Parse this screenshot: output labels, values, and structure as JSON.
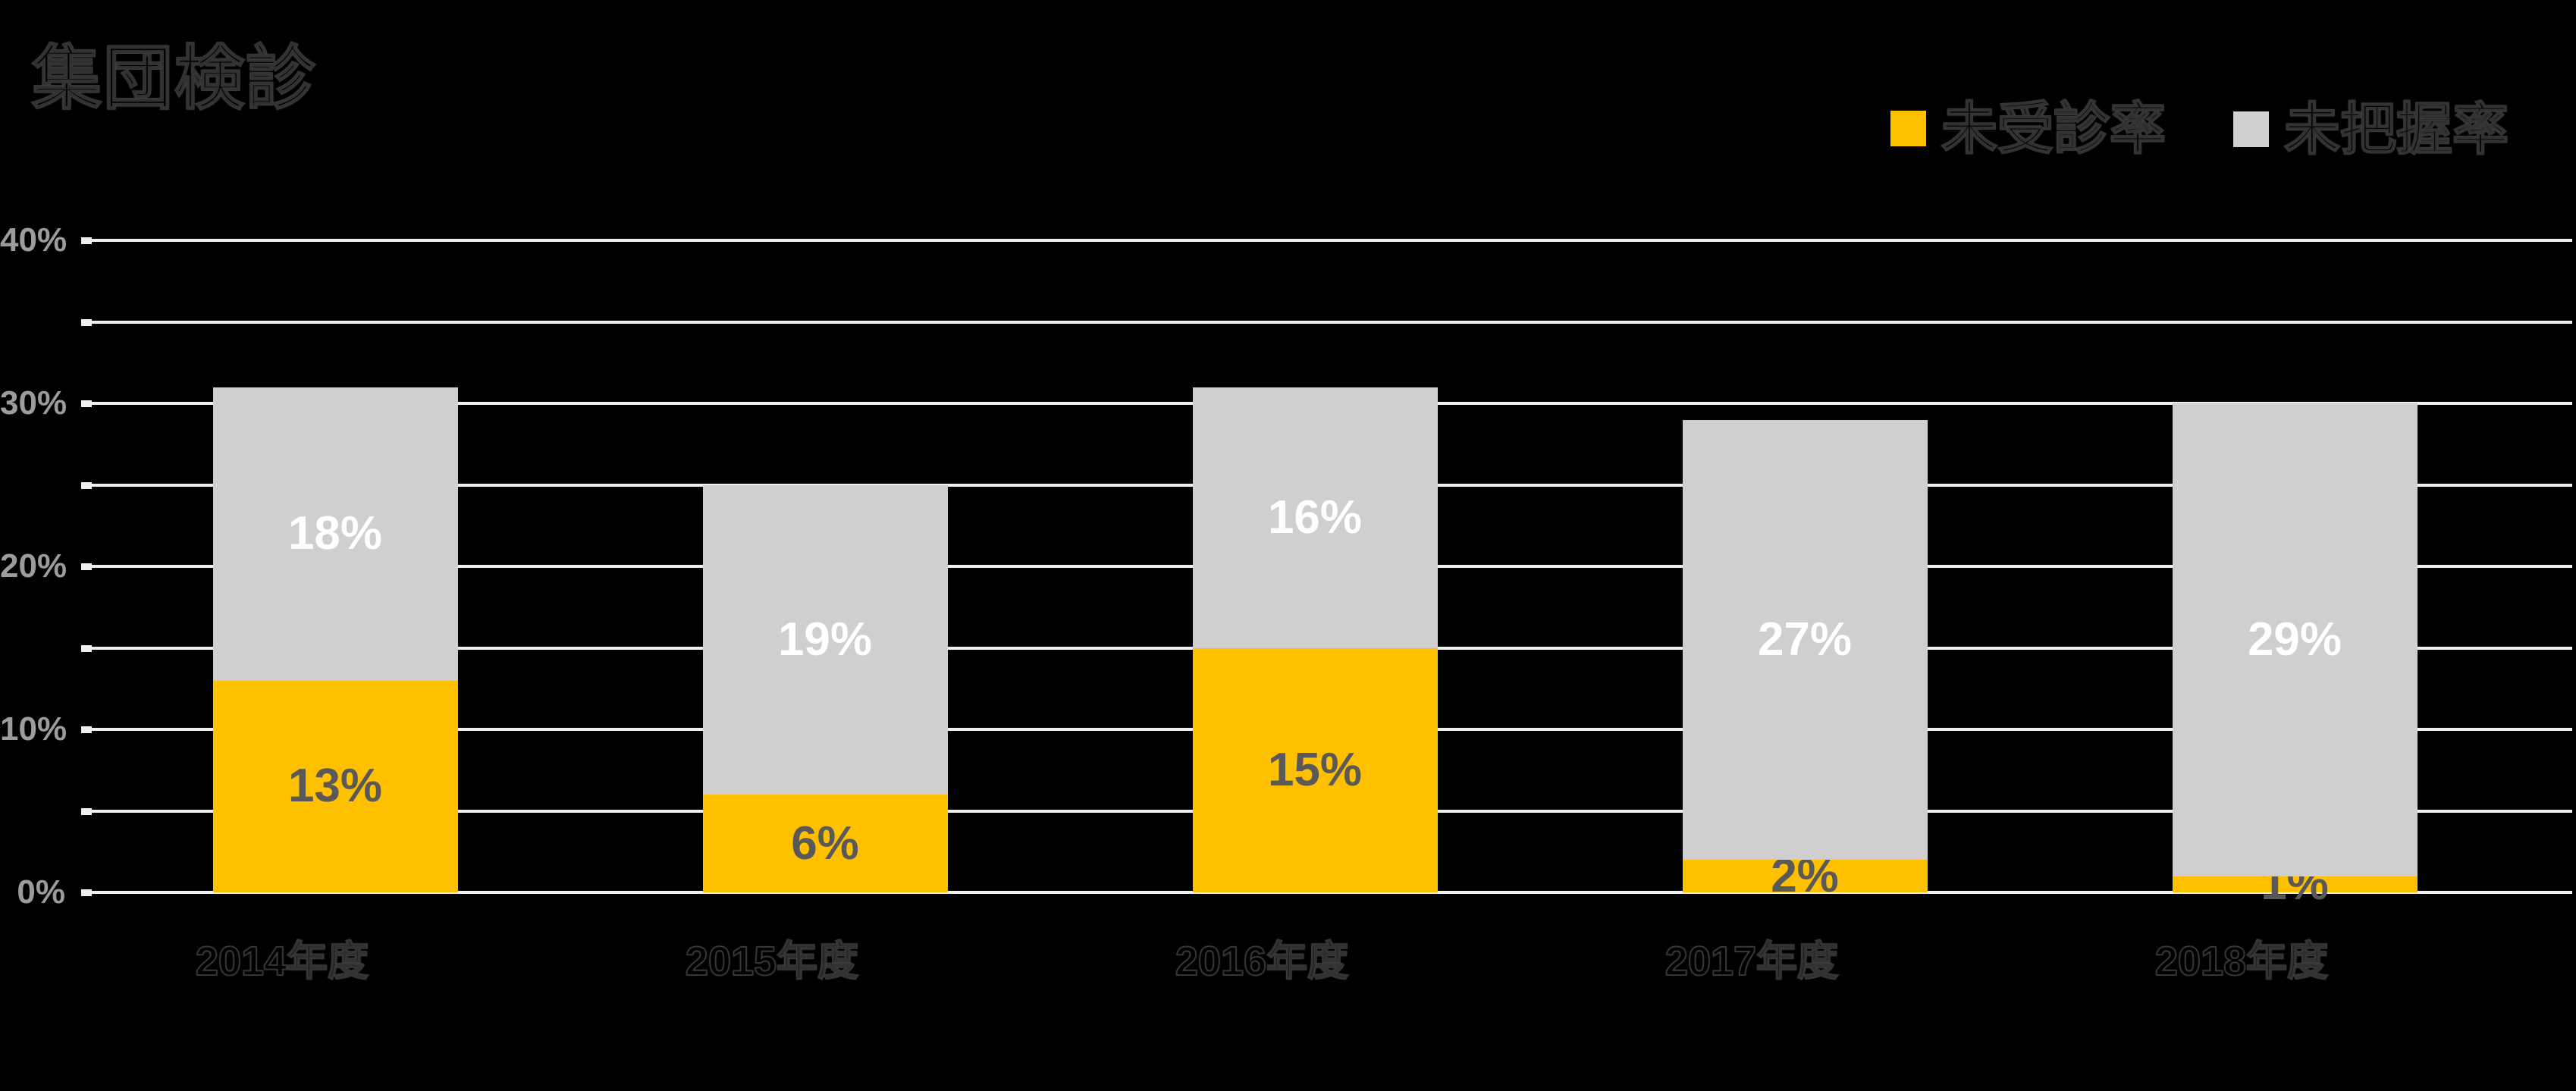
{
  "title": "集団検診",
  "legend": {
    "items": [
      {
        "label": "未受診率",
        "color": "#FFC000"
      },
      {
        "label": "未把握率",
        "color": "#D0CECE"
      }
    ]
  },
  "y_axis": {
    "tick_labels": [
      "0%",
      "10%",
      "20%",
      "30%",
      "40%"
    ]
  },
  "x_axis": {
    "labels": [
      "2014年度",
      "2015年度",
      "2016年度",
      "2017年度",
      "2018年度"
    ]
  },
  "chart_data": {
    "type": "bar",
    "stacked": true,
    "title": "集団検診",
    "categories": [
      "2014年度",
      "2015年度",
      "2016年度",
      "2017年度",
      "2018年度"
    ],
    "series": [
      {
        "name": "未受診率",
        "color": "#FFC000",
        "values": [
          13,
          6,
          15,
          2,
          1
        ],
        "labels": [
          "13%",
          "6%",
          "15%",
          "2%",
          "1%"
        ]
      },
      {
        "name": "未把握率",
        "color": "#D0CECE",
        "values": [
          18,
          19,
          16,
          27,
          29
        ],
        "labels": [
          "18%",
          "19%",
          "16%",
          "27%",
          "29%"
        ]
      }
    ],
    "totals": [
      31,
      25,
      31,
      29,
      30
    ],
    "ylim": [
      0,
      40
    ],
    "ytick_label_interval": 10,
    "gridline_interval": 5,
    "grid": true,
    "legend_position": "top-right"
  },
  "colors": {
    "background": "#000000",
    "series_unexamined": "#FFC000",
    "series_unascertained": "#D0CECE",
    "gridline": "#EFEFEF",
    "axis_tick_label": "#9C9C9C",
    "value_label_on_yellow": "#595959",
    "value_label_on_gray": "#FFFFFF",
    "hidden_black_text": "#000000"
  }
}
